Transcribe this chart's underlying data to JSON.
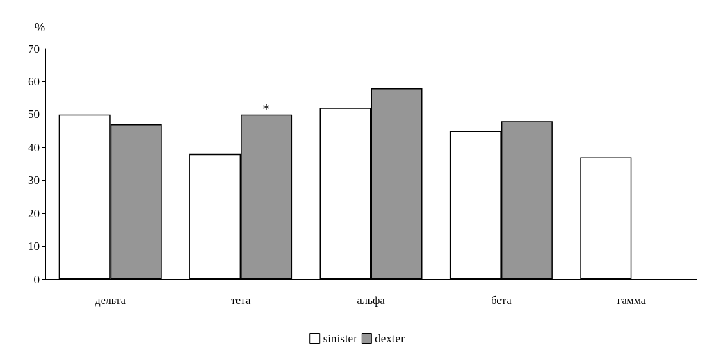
{
  "chart_data": {
    "type": "bar",
    "ylabel": "%",
    "categories": [
      "дельта",
      "тета",
      "альфа",
      "бета",
      "гамма"
    ],
    "series": [
      {
        "name": "sinister",
        "color": "#ffffff",
        "values": [
          50,
          38,
          52,
          45,
          37
        ]
      },
      {
        "name": "dexter",
        "color": "#969696",
        "values": [
          47,
          50,
          58,
          48,
          null
        ]
      }
    ],
    "ylim": [
      0,
      70
    ],
    "yticks": [
      0,
      10,
      20,
      30,
      40,
      50,
      60,
      70
    ],
    "grid": false,
    "legend": "bottom",
    "annotations": [
      {
        "text": "*",
        "x": "тета",
        "y": 50
      }
    ]
  }
}
